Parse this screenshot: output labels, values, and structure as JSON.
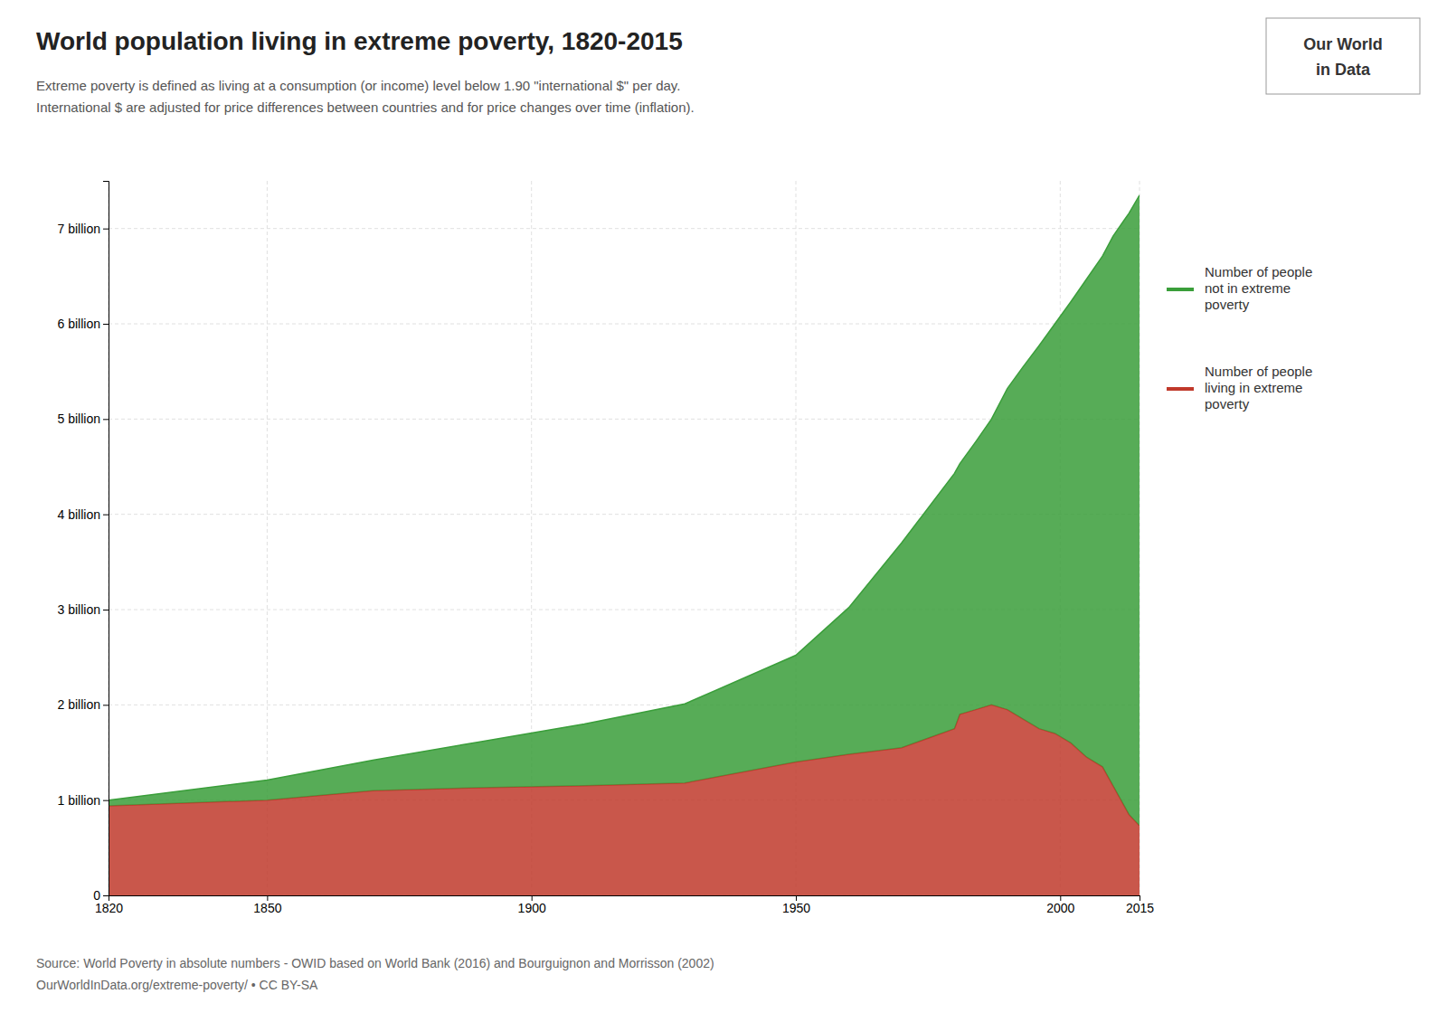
{
  "chart_data": {
    "type": "area",
    "stacked": true,
    "title": "World population living in extreme poverty, 1820-2015",
    "subtitle": [
      "Extreme poverty is defined as living at a consumption (or income) level below 1.90 \"international $\" per day.",
      "International $ are adjusted for price differences between countries and for price changes over time (inflation)."
    ],
    "annotations": [
      "Source: World Poverty in absolute numbers - OWID based on World Bank (2016) and Bourguignon and Morrisson (2002)",
      "OurWorldInData.org/extreme-poverty/ • CC BY-SA",
      "Our World",
      "in Data"
    ],
    "x": [
      1820,
      1850,
      1870,
      1890,
      1910,
      1929,
      1950,
      1960,
      1970,
      1980,
      1981,
      1984,
      1987,
      1990,
      1993,
      1996,
      1999,
      2002,
      2005,
      2008,
      2010,
      2011,
      2012,
      2013,
      2015
    ],
    "series": [
      {
        "name": "Number of people\nliving in extreme\npoverty",
        "color": "#c0392b",
        "values": [
          0.94,
          1.0,
          1.1,
          1.13,
          1.15,
          1.18,
          1.4,
          1.48,
          1.55,
          1.75,
          1.9,
          1.95,
          2.0,
          1.95,
          1.85,
          1.75,
          1.7,
          1.6,
          1.45,
          1.35,
          1.15,
          1.05,
          0.95,
          0.85,
          0.73
        ]
      },
      {
        "name": "Number of people\nnot in extreme\npoverty",
        "color": "#3a9e3a",
        "values": [
          0.06,
          0.21,
          0.32,
          0.48,
          0.65,
          0.83,
          1.12,
          1.54,
          2.15,
          2.68,
          2.63,
          2.81,
          3.0,
          3.37,
          3.7,
          4.02,
          4.3,
          4.63,
          5.02,
          5.36,
          5.77,
          5.95,
          6.13,
          6.31,
          6.62
        ]
      }
    ],
    "xlim": [
      1820,
      2015
    ],
    "xticks": [
      1820,
      1850,
      1900,
      1950,
      2000,
      2015
    ],
    "ylim": [
      0,
      7.5
    ],
    "yticks": [
      0,
      {
        "value": 1,
        "label": "1 billion"
      },
      {
        "value": 2,
        "label": "2 billion"
      },
      {
        "value": 3,
        "label": "3 billion"
      },
      {
        "value": 4,
        "label": "4 billion"
      },
      {
        "value": 5,
        "label": "5 billion"
      },
      {
        "value": 6,
        "label": "6 billion"
      },
      {
        "value": 7,
        "label": "7 billion"
      }
    ],
    "grid": true
  }
}
